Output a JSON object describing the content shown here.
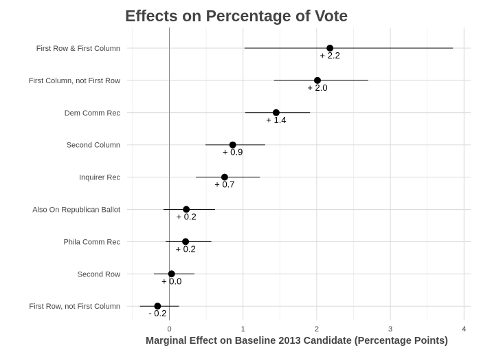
{
  "chart_data": {
    "type": "scatter",
    "title": "Effects on Percentage of Vote",
    "xlabel": "Marginal Effect on Baseline 2013 Candidate (Percentage Points)",
    "ylabel": "",
    "xlim": [
      -0.6,
      4.1
    ],
    "x_ticks": [
      0,
      1,
      2,
      3,
      4
    ],
    "x_tick_labels": [
      "0",
      "1",
      "2",
      "3",
      "4"
    ],
    "grid": true,
    "reference_line_x": 0,
    "categories": [
      "First Row & First Column",
      "First Column, not First Row",
      "Dem Comm Rec",
      "Second Column",
      "Inquirer Rec",
      "Also On Republican Ballot",
      "Phila Comm Rec",
      "Second Row",
      "First Row, not First Column"
    ],
    "values": [
      2.18,
      2.01,
      1.45,
      0.86,
      0.75,
      0.23,
      0.22,
      0.03,
      -0.16
    ],
    "ci_low": [
      1.02,
      1.42,
      1.03,
      0.49,
      0.36,
      -0.08,
      -0.05,
      -0.21,
      -0.4
    ],
    "ci_high": [
      3.85,
      2.7,
      1.91,
      1.3,
      1.23,
      0.62,
      0.57,
      0.34,
      0.13
    ],
    "data_labels": [
      "+ 2.2",
      "+ 2.0",
      "+ 1.4",
      "+ 0.9",
      "+ 0.7",
      "+ 0.2",
      "+ 0.2",
      "+ 0.0",
      "- 0.2"
    ]
  }
}
